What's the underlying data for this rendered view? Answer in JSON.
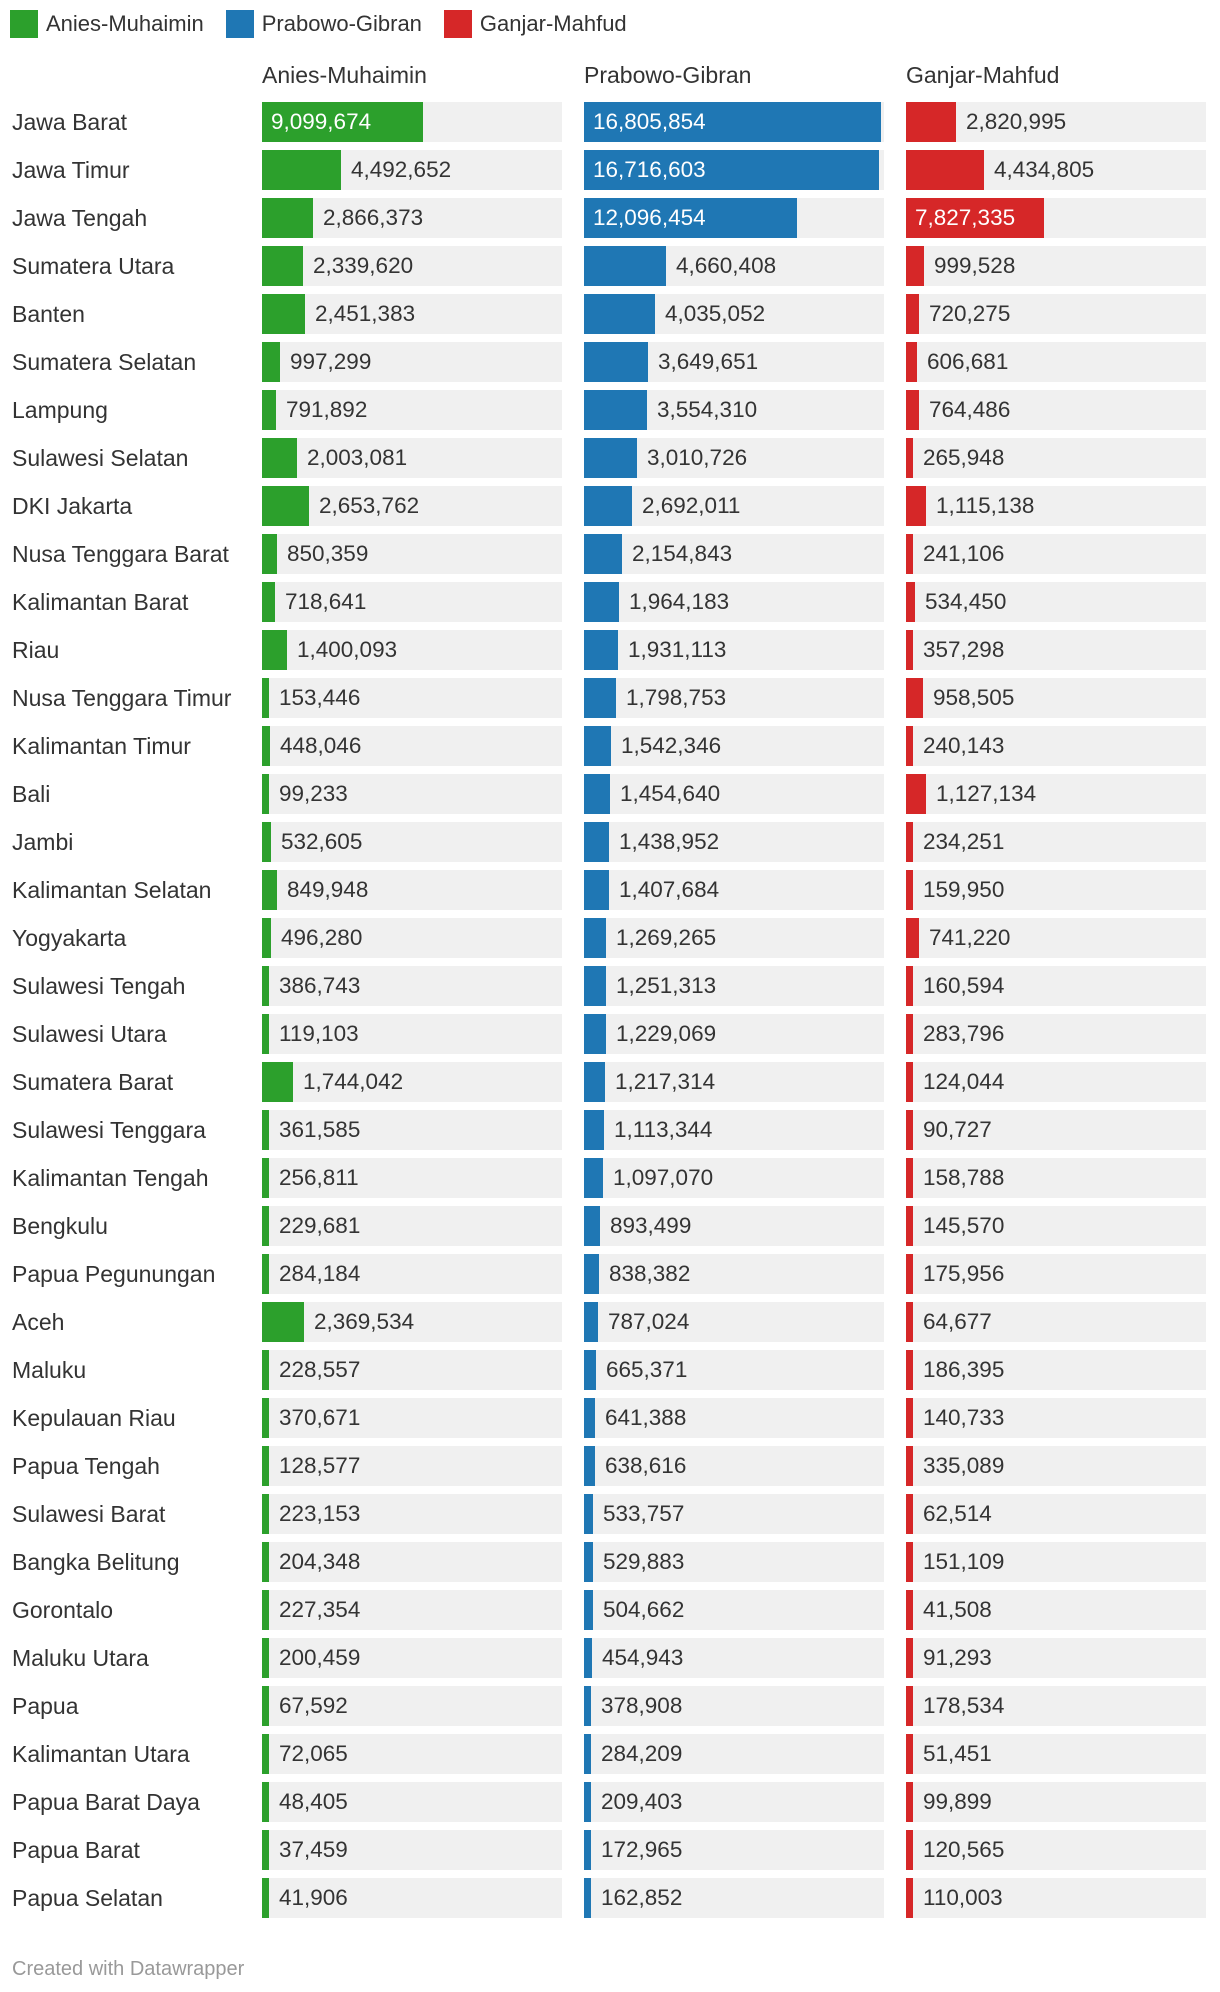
{
  "legend": [
    {
      "name": "Anies-Muhaimin",
      "color": "#2ca02c"
    },
    {
      "name": "Prabowo-Gibran",
      "color": "#1f77b4"
    },
    {
      "name": "Ganjar-Mahfud",
      "color": "#d62728"
    }
  ],
  "footer": "Created with Datawrapper",
  "chart_data": {
    "type": "bar",
    "series": [
      {
        "name": "Anies-Muhaimin",
        "color": "#2ca02c",
        "max": 17000000,
        "values": [
          9099674,
          4492652,
          2866373,
          2339620,
          2451383,
          997299,
          791892,
          2003081,
          2653762,
          850359,
          718641,
          1400093,
          153446,
          448046,
          99233,
          532605,
          849948,
          496280,
          386743,
          119103,
          1744042,
          361585,
          256811,
          229681,
          284184,
          2369534,
          228557,
          370671,
          128577,
          223153,
          204348,
          227354,
          200459,
          67592,
          72065,
          48405,
          37459,
          41906
        ],
        "labels": [
          "9,099,674",
          "4,492,652",
          "2,866,373",
          "2,339,620",
          "2,451,383",
          "997,299",
          "791,892",
          "2,003,081",
          "2,653,762",
          "850,359",
          "718,641",
          "1,400,093",
          "153,446",
          "448,046",
          "99,233",
          "532,605",
          "849,948",
          "496,280",
          "386,743",
          "119,103",
          "1,744,042",
          "361,585",
          "256,811",
          "229,681",
          "284,184",
          "2,369,534",
          "228,557",
          "370,671",
          "128,577",
          "223,153",
          "204,348",
          "227,354",
          "200,459",
          "67,592",
          "72,065",
          "48,405",
          "37,459",
          "41,906"
        ]
      },
      {
        "name": "Prabowo-Gibran",
        "color": "#1f77b4",
        "max": 17000000,
        "values": [
          16805854,
          16716603,
          12096454,
          4660408,
          4035052,
          3649651,
          3554310,
          3010726,
          2692011,
          2154843,
          1964183,
          1931113,
          1798753,
          1542346,
          1454640,
          1438952,
          1407684,
          1269265,
          1251313,
          1229069,
          1217314,
          1113344,
          1097070,
          893499,
          838382,
          787024,
          665371,
          641388,
          638616,
          533757,
          529883,
          504662,
          454943,
          378908,
          284209,
          209403,
          172965,
          162852
        ],
        "labels": [
          "16,805,854",
          "16,716,603",
          "12,096,454",
          "4,660,408",
          "4,035,052",
          "3,649,651",
          "3,554,310",
          "3,010,726",
          "2,692,011",
          "2,154,843",
          "1,964,183",
          "1,931,113",
          "1,798,753",
          "1,542,346",
          "1,454,640",
          "1,438,952",
          "1,407,684",
          "1,269,265",
          "1,251,313",
          "1,229,069",
          "1,217,314",
          "1,113,344",
          "1,097,070",
          "893,499",
          "838,382",
          "787,024",
          "665,371",
          "641,388",
          "638,616",
          "533,757",
          "529,883",
          "504,662",
          "454,943",
          "378,908",
          "284,209",
          "209,403",
          "172,965",
          "162,852"
        ]
      },
      {
        "name": "Ganjar-Mahfud",
        "color": "#d62728",
        "max": 17000000,
        "values": [
          2820995,
          4434805,
          7827335,
          999528,
          720275,
          606681,
          764486,
          265948,
          1115138,
          241106,
          534450,
          357298,
          958505,
          240143,
          1127134,
          234251,
          159950,
          741220,
          160594,
          283796,
          124044,
          90727,
          158788,
          145570,
          175956,
          64677,
          186395,
          140733,
          335089,
          62514,
          151109,
          41508,
          91293,
          178534,
          51451,
          99899,
          120565,
          110003
        ],
        "labels": [
          "2,820,995",
          "4,434,805",
          "7,827,335",
          "999,528",
          "720,275",
          "606,681",
          "764,486",
          "265,948",
          "1,115,138",
          "241,106",
          "534,450",
          "357,298",
          "958,505",
          "240,143",
          "1,127,134",
          "234,251",
          "159,950",
          "741,220",
          "160,594",
          "283,796",
          "124,044",
          "90,727",
          "158,788",
          "145,570",
          "175,956",
          "64,677",
          "186,395",
          "140,733",
          "335,089",
          "62,514",
          "151,109",
          "41,508",
          "91,293",
          "178,534",
          "51,451",
          "99,899",
          "120,565",
          "110,003"
        ]
      }
    ],
    "categories": [
      "Jawa Barat",
      "Jawa Timur",
      "Jawa Tengah",
      "Sumatera Utara",
      "Banten",
      "Sumatera Selatan",
      "Lampung",
      "Sulawesi Selatan",
      "DKI Jakarta",
      "Nusa Tenggara Barat",
      "Kalimantan Barat",
      "Riau",
      "Nusa Tenggara Timur",
      "Kalimantan Timur",
      "Bali",
      "Jambi",
      "Kalimantan Selatan",
      "Yogyakarta",
      "Sulawesi Tengah",
      "Sulawesi Utara",
      "Sumatera Barat",
      "Sulawesi Tenggara",
      "Kalimantan Tengah",
      "Bengkulu",
      "Papua Pegunungan",
      "Aceh",
      "Maluku",
      "Kepulauan Riau",
      "Papua Tengah",
      "Sulawesi Barat",
      "Bangka Belitung",
      "Gorontalo",
      "Maluku Utara",
      "Papua",
      "Kalimantan Utara",
      "Papua Barat Daya",
      "Papua Barat",
      "Papua Selatan"
    ]
  }
}
